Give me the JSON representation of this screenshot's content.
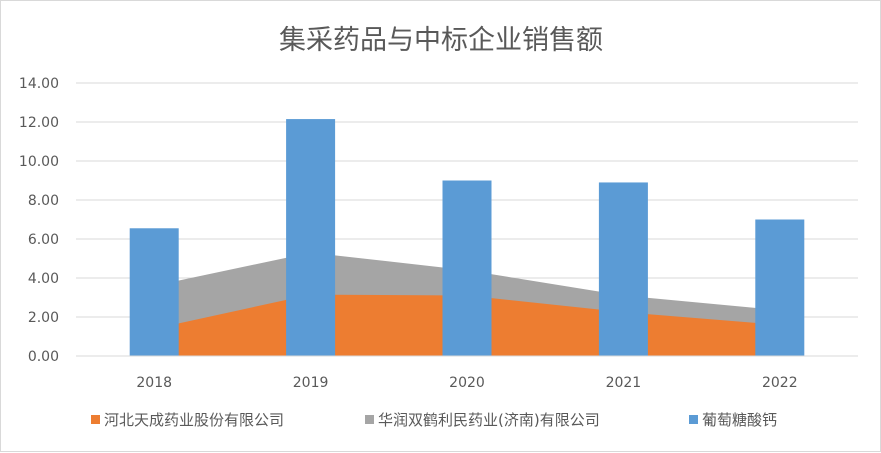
{
  "chart_data": {
    "type": "bar",
    "title": "集采药品与中标企业销售额",
    "categories": [
      "2018",
      "2019",
      "2020",
      "2021",
      "2022"
    ],
    "ylim": [
      0,
      14
    ],
    "y_ticks": [
      "0.00",
      "2.00",
      "4.00",
      "6.00",
      "8.00",
      "10.00",
      "12.00",
      "14.00"
    ],
    "grid": true,
    "legend_position": "bottom",
    "series": [
      {
        "name": "河北天成药业股份有限公司",
        "kind": "area",
        "color": "#ed7d31",
        "values": [
          1.4,
          3.15,
          3.1,
          2.25,
          1.6
        ]
      },
      {
        "name": "华润双鹤利民药业(济南)有限公司",
        "kind": "area",
        "color": "#a5a5a5",
        "values": [
          3.6,
          5.3,
          4.4,
          3.1,
          2.35
        ]
      },
      {
        "name": "葡萄糖酸钙",
        "kind": "bar",
        "color": "#5b9bd5",
        "values": [
          6.55,
          12.15,
          9.0,
          8.9,
          7.0
        ]
      }
    ]
  }
}
